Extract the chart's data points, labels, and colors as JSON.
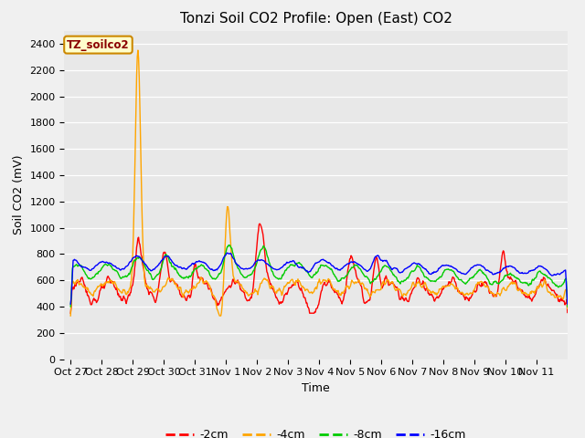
{
  "title": "Tonzi Soil CO2 Profile: Open (East) CO2",
  "xlabel": "Time",
  "ylabel": "Soil CO2 (mV)",
  "ylim": [
    0,
    2500
  ],
  "yticks": [
    0,
    200,
    400,
    600,
    800,
    1000,
    1200,
    1400,
    1600,
    1800,
    2000,
    2200,
    2400
  ],
  "background_color": "#e8e8e8",
  "plot_bg_color": "#e0e0e0",
  "legend_label": "TZ_soilco2",
  "series_labels": [
    "-2cm",
    "-4cm",
    "-8cm",
    "-16cm"
  ],
  "series_colors": [
    "#ff0000",
    "#ffa500",
    "#00cc00",
    "#0000ff"
  ],
  "line_width": 1.0,
  "title_fontsize": 11,
  "label_fontsize": 9,
  "tick_fontsize": 8,
  "tick_labels": [
    "Oct 27",
    "Oct 28",
    "Oct 29",
    "Oct 30",
    "Oct 31",
    "Nov 1",
    "Nov 2",
    "Nov 3",
    "Nov 4",
    "Nov 5",
    "Nov 6",
    "Nov 7",
    "Nov 8",
    "Nov 9",
    "Nov 10",
    "Nov 11"
  ]
}
